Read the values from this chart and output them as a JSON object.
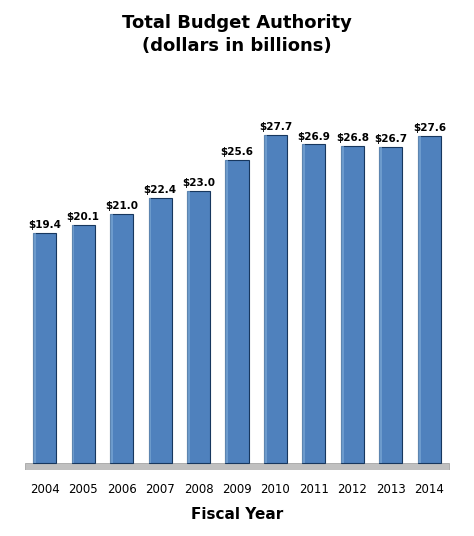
{
  "years": [
    "2004",
    "2005",
    "2006",
    "2007",
    "2008",
    "2009",
    "2010",
    "2011",
    "2012",
    "2013",
    "2014"
  ],
  "values": [
    19.4,
    20.1,
    21.0,
    22.4,
    23.0,
    25.6,
    27.7,
    26.9,
    26.8,
    26.7,
    27.6
  ],
  "labels": [
    "$19.4",
    "$20.1",
    "$21.0",
    "$22.4",
    "$23.0",
    "$25.6",
    "$27.7",
    "$26.9",
    "$26.8",
    "$26.7",
    "$27.6"
  ],
  "bar_color": "#4F81BD",
  "bar_edge_color": "#17375E",
  "title_line1": "Total Budget Authority",
  "title_line2": "(dollars in billions)",
  "xlabel": "Fiscal Year",
  "background_color": "#FFFFFF",
  "ylim": [
    0,
    33
  ],
  "label_fontsize": 7.5,
  "xlabel_fontsize": 11,
  "title_fontsize": 13,
  "tick_fontsize": 8.5
}
